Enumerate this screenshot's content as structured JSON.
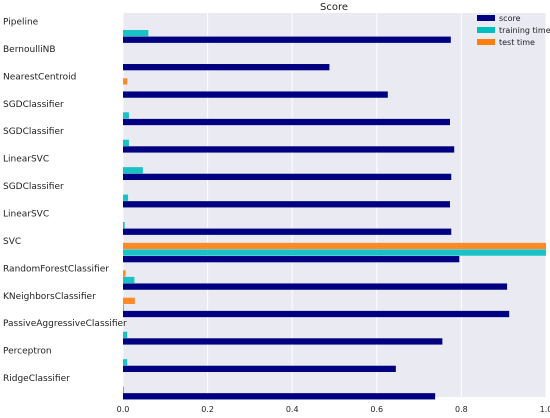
{
  "chart_data": {
    "type": "bar",
    "orientation": "horizontal",
    "title": "Score",
    "xlabel": "",
    "ylabel": "",
    "xlim": [
      0,
      1.0
    ],
    "grid": true,
    "legend_position": "top-right",
    "x_ticks": [
      "0.0",
      "0.2",
      "0.4",
      "0.6",
      "0.8",
      "1.0"
    ],
    "categories": [
      "Pipeline",
      "BernoulliNB",
      "NearestCentroid",
      "SGDClassifier",
      "SGDClassifier",
      "LinearSVC",
      "SGDClassifier",
      "LinearSVC",
      "SVC",
      "RandomForestClassifier",
      "KNeighborsClassifier",
      "PassiveAggressiveClassifier",
      "Perceptron",
      "RidgeClassifier"
    ],
    "series": [
      {
        "name": "score",
        "color": "#000080",
        "values": [
          0.775,
          0.488,
          0.626,
          0.773,
          0.783,
          0.776,
          0.773,
          0.776,
          0.795,
          0.908,
          0.913,
          0.755,
          0.645,
          0.738
        ]
      },
      {
        "name": "training time",
        "color": "#00bfbf",
        "values": [
          0.06,
          0.0,
          0.0,
          0.014,
          0.014,
          0.047,
          0.012,
          0.004,
          1.0,
          0.027,
          0.002,
          0.01,
          0.01,
          0.002
        ]
      },
      {
        "name": "test time",
        "color": "#ff7f0e",
        "values": [
          0.0,
          0.0,
          0.01,
          0.0,
          0.0,
          0.0,
          0.0,
          0.0,
          1.0,
          0.006,
          0.028,
          0.0,
          0.0,
          0.0
        ]
      }
    ]
  }
}
